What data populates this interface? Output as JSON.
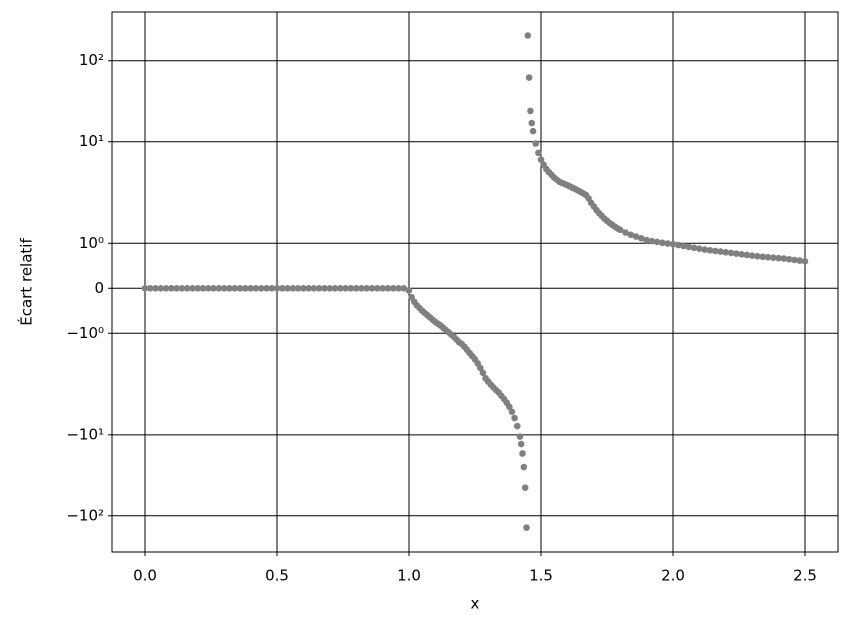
{
  "chart_data": {
    "type": "scatter",
    "xlabel": "x",
    "ylabel": "Écart relatif",
    "yscale": "symlog",
    "linthresh": 2,
    "grid": true,
    "xlim": [
      -0.125,
      2.625
    ],
    "ylim": [
      -280,
      400
    ],
    "xticks": [
      {
        "value": 0,
        "label": "0.0"
      },
      0.5,
      {
        "value": 1,
        "label": "1.0"
      },
      1.5,
      {
        "value": 2,
        "label": "2.0"
      },
      2.5
    ],
    "yticks": [
      {
        "value": -100,
        "label": "−10²"
      },
      {
        "value": -10,
        "label": "−10¹"
      },
      {
        "value": -1,
        "label": "−10⁰"
      },
      0,
      {
        "value": 1,
        "label": "10⁰"
      },
      {
        "value": 10,
        "label": "10¹"
      },
      {
        "value": 100,
        "label": "10²"
      }
    ],
    "series": [
      {
        "color": "#808080",
        "x": [
          0,
          0.02,
          0.04,
          0.06,
          0.08,
          0.1,
          0.12,
          0.14,
          0.16,
          0.18,
          0.2,
          0.22,
          0.24,
          0.26,
          0.28,
          0.3,
          0.32,
          0.34,
          0.36,
          0.38,
          0.4,
          0.42,
          0.44,
          0.46,
          0.48,
          0.5,
          0.52,
          0.54,
          0.56,
          0.58,
          0.6,
          0.62,
          0.64,
          0.66,
          0.68,
          0.7,
          0.72,
          0.74,
          0.76,
          0.78,
          0.8,
          0.82,
          0.84,
          0.86,
          0.88,
          0.9,
          0.92,
          0.94,
          0.96,
          0.98,
          1.0,
          1.01,
          1.02,
          1.03,
          1.04,
          1.05,
          1.06,
          1.07,
          1.08,
          1.09,
          1.1,
          1.11,
          1.12,
          1.13,
          1.14,
          1.15,
          1.16,
          1.17,
          1.18,
          1.19,
          1.2,
          1.21,
          1.22,
          1.23,
          1.24,
          1.25,
          1.26,
          1.27,
          1.28,
          1.29,
          1.3,
          1.31,
          1.32,
          1.33,
          1.34,
          1.35,
          1.36,
          1.37,
          1.38,
          1.39,
          1.4,
          1.41,
          1.42,
          1.425,
          1.43,
          1.435,
          1.44,
          1.445,
          1.45,
          1.455,
          1.46,
          1.465,
          1.47,
          1.48,
          1.49,
          1.5,
          1.51,
          1.52,
          1.53,
          1.54,
          1.55,
          1.56,
          1.57,
          1.58,
          1.59,
          1.6,
          1.61,
          1.62,
          1.63,
          1.64,
          1.65,
          1.66,
          1.67,
          1.68,
          1.69,
          1.7,
          1.71,
          1.72,
          1.73,
          1.74,
          1.75,
          1.76,
          1.77,
          1.78,
          1.79,
          1.8,
          1.82,
          1.84,
          1.86,
          1.88,
          1.9,
          1.92,
          1.94,
          1.96,
          1.98,
          2.0,
          2.02,
          2.04,
          2.06,
          2.08,
          2.1,
          2.12,
          2.14,
          2.16,
          2.18,
          2.2,
          2.22,
          2.24,
          2.26,
          2.28,
          2.3,
          2.32,
          2.34,
          2.36,
          2.38,
          2.4,
          2.42,
          2.44,
          2.46,
          2.48,
          2.5
        ],
        "values": [
          0,
          0,
          0,
          0,
          0,
          0,
          0,
          0,
          0,
          0,
          0,
          0,
          0,
          0,
          0,
          0,
          0,
          0,
          0,
          0,
          0,
          0,
          0,
          0,
          0,
          0,
          0,
          0,
          0,
          0,
          0,
          0,
          0,
          0,
          0,
          0,
          0,
          0,
          0,
          0,
          0,
          0,
          0,
          0,
          0,
          0,
          0,
          0,
          0,
          0,
          -0.05,
          -0.2,
          -0.3,
          -0.38,
          -0.44,
          -0.5,
          -0.55,
          -0.6,
          -0.65,
          -0.7,
          -0.75,
          -0.79,
          -0.83,
          -0.88,
          -0.93,
          -0.98,
          -1.03,
          -1.08,
          -1.14,
          -1.2,
          -1.24,
          -1.3,
          -1.37,
          -1.44,
          -1.51,
          -1.58,
          -1.67,
          -1.77,
          -1.88,
          -2.0,
          -2.2,
          -2.4,
          -2.6,
          -2.8,
          -3.0,
          -3.3,
          -3.6,
          -4.0,
          -4.5,
          -5.2,
          -6.2,
          -7.8,
          -10.5,
          -13,
          -17,
          -25,
          -45,
          -140,
          205,
          62,
          24,
          17,
          13.5,
          9.5,
          7.3,
          6.0,
          5.2,
          4.6,
          4.2,
          3.9,
          3.6,
          3.4,
          3.2,
          3.1,
          3.0,
          2.9,
          2.8,
          2.7,
          2.6,
          2.5,
          2.4,
          2.3,
          2.2,
          2.0,
          1.9,
          1.82,
          1.74,
          1.67,
          1.61,
          1.55,
          1.5,
          1.45,
          1.41,
          1.37,
          1.33,
          1.3,
          1.24,
          1.19,
          1.15,
          1.11,
          1.07,
          1.05,
          1.03,
          1.01,
          0.995,
          0.98,
          0.96,
          0.94,
          0.92,
          0.9,
          0.88,
          0.86,
          0.845,
          0.83,
          0.815,
          0.8,
          0.785,
          0.77,
          0.755,
          0.74,
          0.725,
          0.71,
          0.7,
          0.69,
          0.68,
          0.67,
          0.66,
          0.645,
          0.63,
          0.615,
          0.6
        ]
      }
    ]
  }
}
